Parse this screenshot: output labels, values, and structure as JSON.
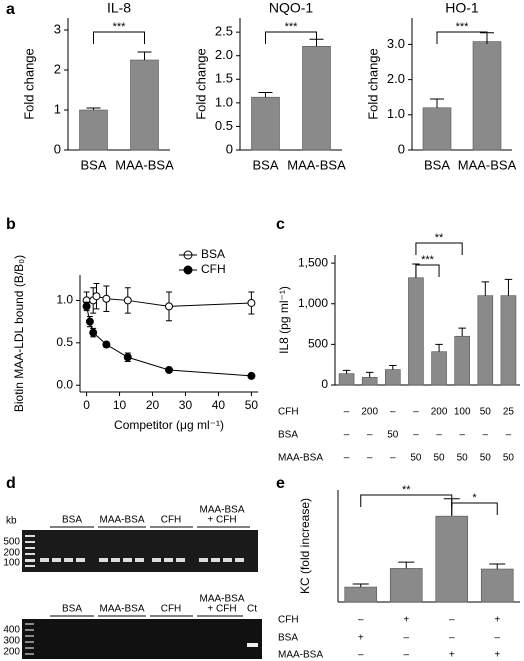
{
  "figure": {
    "panel_labels": [
      "a",
      "b",
      "c",
      "d",
      "e"
    ],
    "gel": {
      "unit": "kb",
      "groups": [
        "BSA",
        "MAA-BSA",
        "CFH"
      ],
      "combined_group": [
        "MAA-BSA",
        "+ CFH"
      ],
      "upper_markers": [
        500,
        200,
        100
      ],
      "lower_markers": [
        400,
        300,
        200
      ],
      "control": "Ct"
    }
  },
  "chart_data": [
    {
      "type": "bar",
      "title": "IL-8",
      "ylabel": "Fold change",
      "categories": [
        "BSA",
        "MAA-BSA"
      ],
      "values": [
        1.0,
        2.25
      ],
      "errors": [
        0.05,
        0.2
      ],
      "color": "#8a8a8a",
      "ylim": [
        0,
        3.3
      ],
      "yticks": [
        0,
        1,
        2,
        3
      ],
      "annotations": [
        "***"
      ]
    },
    {
      "type": "bar",
      "title": "NQO-1",
      "ylabel": "Fold change",
      "categories": [
        "BSA",
        "MAA-BSA"
      ],
      "values": [
        1.12,
        2.2
      ],
      "errors": [
        0.1,
        0.15
      ],
      "color": "#8a8a8a",
      "ylim": [
        0,
        2.8
      ],
      "yticks": [
        0,
        0.5,
        {
          "value": 1,
          "label": "1.0"
        },
        1.5,
        {
          "value": 2,
          "label": "2.0"
        },
        2.5
      ],
      "annotations": [
        "***"
      ]
    },
    {
      "type": "bar",
      "title": "HO-1",
      "ylabel": "Fold change",
      "categories": [
        "BSA",
        "MAA-BSA"
      ],
      "values": [
        1.2,
        3.08
      ],
      "errors": [
        0.25,
        0.25
      ],
      "color": "#8a8a8a",
      "ylim": [
        0,
        3.75
      ],
      "yticks": [
        0,
        {
          "value": 1,
          "label": "1.0"
        },
        {
          "value": 2,
          "label": "2.0"
        },
        {
          "value": 3,
          "label": "3.0"
        }
      ],
      "annotations": [
        "***"
      ]
    },
    {
      "type": "line",
      "ylabel": "Biotin MAA-LDL bound (B/B₀)",
      "xlabel": "Competitor (μg ml⁻¹)",
      "xlim": [
        -2,
        52
      ],
      "xticks": [
        0,
        10,
        20,
        30,
        40,
        50
      ],
      "ylim": [
        -0.08,
        1.3
      ],
      "yticks": [
        {
          "value": 0,
          "label": "0.0"
        },
        0.5,
        {
          "value": 1,
          "label": "1.0"
        }
      ],
      "legend": "upper right",
      "series": [
        {
          "name": "BSA",
          "color": "#000000",
          "marker_fill": "#ffffff",
          "x": [
            0,
            2,
            3,
            6,
            12.5,
            25,
            50
          ],
          "values": [
            1.0,
            1.0,
            1.05,
            1.02,
            1.0,
            0.93,
            0.97
          ],
          "errors": [
            0.1,
            0.15,
            0.15,
            0.15,
            0.15,
            0.17,
            0.13
          ]
        },
        {
          "name": "CFH",
          "color": "#000000",
          "marker_fill": "#000000",
          "x": [
            0,
            1,
            2,
            6,
            12.5,
            25,
            50
          ],
          "values": [
            0.93,
            0.75,
            0.62,
            0.48,
            0.33,
            0.18,
            0.11
          ],
          "errors": [
            0.05,
            0.06,
            0.05,
            0.03,
            0.05,
            0.02,
            0.02
          ]
        }
      ]
    },
    {
      "type": "bar",
      "ylabel": "IL8 (pg ml⁻¹)",
      "values": [
        140,
        95,
        190,
        1320,
        410,
        600,
        1100,
        1100
      ],
      "errors": [
        40,
        60,
        50,
        170,
        90,
        100,
        170,
        200
      ],
      "color": "#8a8a8a",
      "ylim": [
        0,
        1600
      ],
      "yticks": [
        0,
        500,
        {
          "value": 1000,
          "label": "1,000"
        },
        {
          "value": 1500,
          "label": "1,500"
        }
      ],
      "annotations": [
        "**",
        "***"
      ],
      "conditions": [
        {
          "name": "CFH",
          "values": [
            "–",
            "200",
            "–",
            "–",
            "200",
            "100",
            "50",
            "25"
          ]
        },
        {
          "name": "BSA",
          "values": [
            "–",
            "–",
            "50",
            "–",
            "–",
            "–",
            "–",
            "–"
          ]
        },
        {
          "name": "MAA-BSA",
          "values": [
            "–",
            "–",
            "–",
            "50",
            "50",
            "50",
            "50",
            "50"
          ]
        }
      ]
    },
    {
      "type": "bar",
      "ylabel": "KC (fold increase)",
      "values": [
        1.2,
        2.7,
        6.9,
        2.65
      ],
      "errors": [
        0.25,
        0.5,
        1.4,
        0.4
      ],
      "color": "#8a8a8a",
      "ylim": [
        0,
        9
      ],
      "annotations": [
        "**",
        "*"
      ],
      "conditions": [
        {
          "name": "CFH",
          "values": [
            "–",
            "+",
            "–",
            "+"
          ]
        },
        {
          "name": "BSA",
          "values": [
            "+",
            "–",
            "–",
            "–"
          ]
        },
        {
          "name": "MAA-BSA",
          "values": [
            "–",
            "–",
            "+",
            "+"
          ]
        }
      ]
    }
  ]
}
